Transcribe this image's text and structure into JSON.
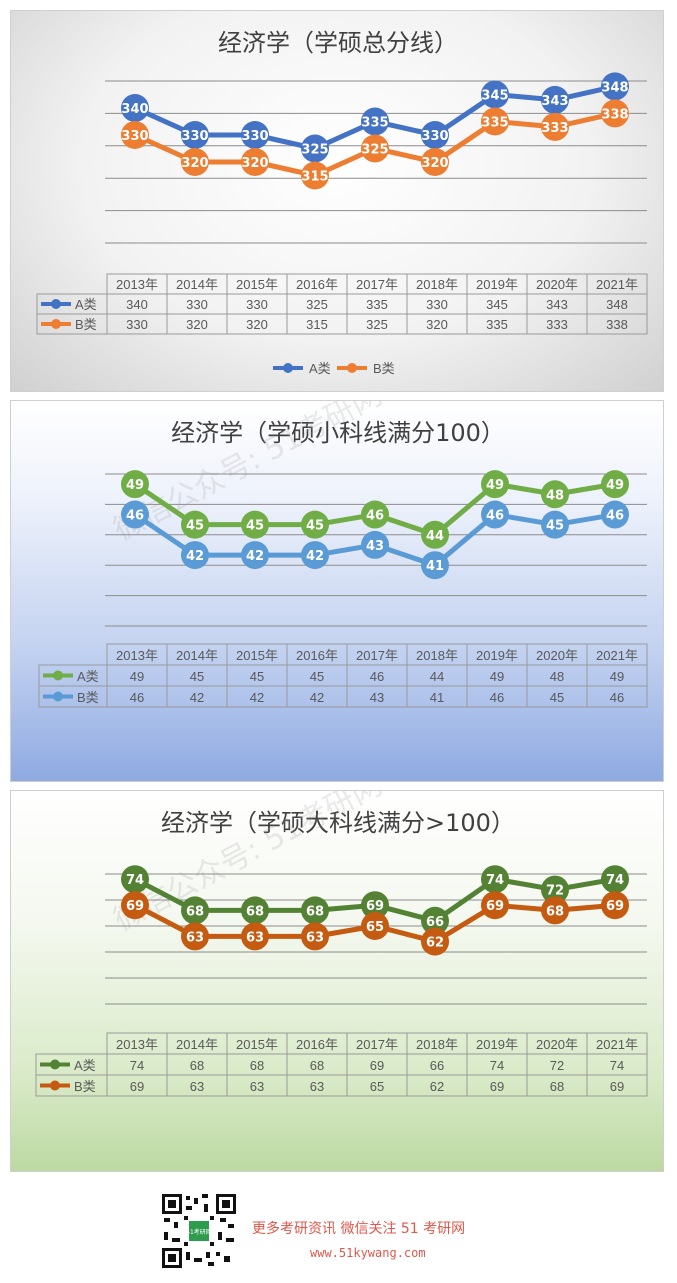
{
  "categories": [
    "2013年",
    "2014年",
    "2015年",
    "2016年",
    "2017年",
    "2018年",
    "2019年",
    "2020年",
    "2021年"
  ],
  "watermark": "微信公众号: 51考研网",
  "chart_data": [
    {
      "type": "line",
      "title": "经济学（学硕总分线）",
      "categories": [
        "2013年",
        "2014年",
        "2015年",
        "2016年",
        "2017年",
        "2018年",
        "2019年",
        "2020年",
        "2021年"
      ],
      "series": [
        {
          "name": "A类",
          "values": [
            340,
            330,
            330,
            325,
            335,
            330,
            345,
            343,
            348
          ],
          "color": "#4472c4"
        },
        {
          "name": "B类",
          "values": [
            330,
            320,
            320,
            315,
            325,
            320,
            335,
            333,
            338
          ],
          "color": "#ed7d31"
        }
      ],
      "ylim": [
        290,
        350
      ],
      "grid": true,
      "legend": "bottom",
      "data_table": true
    },
    {
      "type": "line",
      "title": "经济学（学硕小科线满分100）",
      "categories": [
        "2013年",
        "2014年",
        "2015年",
        "2016年",
        "2017年",
        "2018年",
        "2019年",
        "2020年",
        "2021年"
      ],
      "series": [
        {
          "name": "A类",
          "values": [
            49,
            45,
            45,
            45,
            46,
            44,
            49,
            48,
            49
          ],
          "color": "#70ad47"
        },
        {
          "name": "B类",
          "values": [
            46,
            42,
            42,
            42,
            43,
            41,
            46,
            45,
            46
          ],
          "color": "#5b9bd5"
        }
      ],
      "ylim": [
        35,
        50
      ],
      "grid": true,
      "legend": "none",
      "data_table": true
    },
    {
      "type": "line",
      "title": "经济学（学硕大科线满分>100）",
      "categories": [
        "2013年",
        "2014年",
        "2015年",
        "2016年",
        "2017年",
        "2018年",
        "2019年",
        "2020年",
        "2021年"
      ],
      "series": [
        {
          "name": "A类",
          "values": [
            74,
            68,
            68,
            68,
            69,
            66,
            74,
            72,
            74
          ],
          "color": "#548235"
        },
        {
          "name": "B类",
          "values": [
            69,
            63,
            63,
            63,
            65,
            62,
            69,
            68,
            69
          ],
          "color": "#c55a11"
        }
      ],
      "ylim": [
        50,
        75
      ],
      "grid": true,
      "legend": "none",
      "data_table": true
    }
  ],
  "footer": {
    "text": "更多考研资讯  微信关注 51 考研网",
    "url": "www.51kywang.com",
    "qr_label": "51考研网"
  }
}
